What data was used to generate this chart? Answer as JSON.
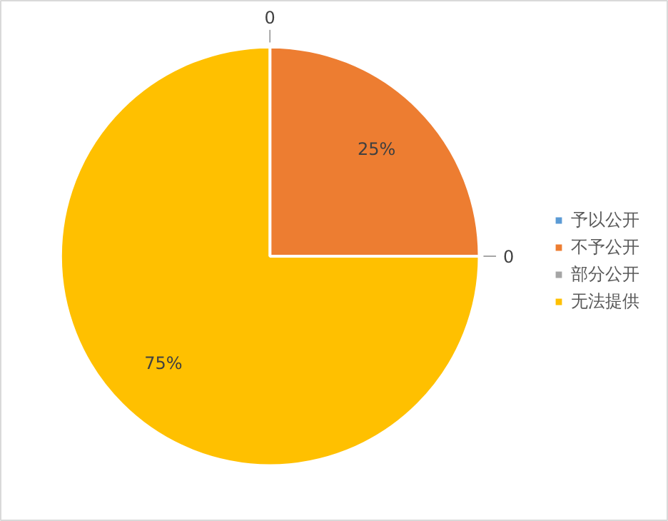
{
  "chart_data": {
    "type": "pie",
    "categories": [
      "予以公开",
      "不予公开",
      "部分公开",
      "无法提供"
    ],
    "values": [
      0,
      25,
      0,
      75
    ],
    "colors": [
      "#5b9bd5",
      "#ed7d31",
      "#a5a5a5",
      "#ffc000"
    ],
    "value_labels": [
      "0",
      "25%",
      "0",
      "75%"
    ],
    "legend": "right"
  }
}
